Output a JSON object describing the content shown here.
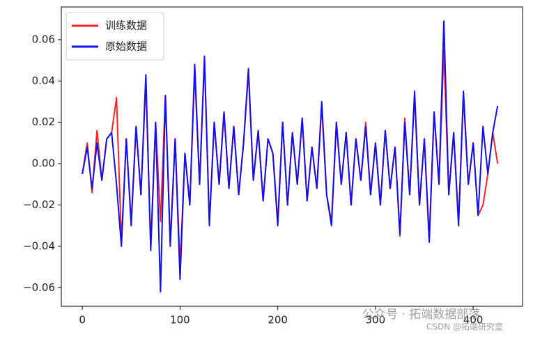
{
  "chart_data": {
    "type": "line",
    "x": [
      0,
      5,
      10,
      15,
      20,
      25,
      30,
      35,
      40,
      45,
      50,
      55,
      60,
      65,
      70,
      75,
      80,
      85,
      90,
      95,
      100,
      105,
      110,
      115,
      120,
      125,
      130,
      135,
      140,
      145,
      150,
      155,
      160,
      165,
      170,
      175,
      180,
      185,
      190,
      195,
      200,
      205,
      210,
      215,
      220,
      225,
      230,
      235,
      240,
      245,
      250,
      255,
      260,
      265,
      270,
      275,
      280,
      285,
      290,
      295,
      300,
      305,
      310,
      315,
      320,
      325,
      330,
      335,
      340,
      345,
      350,
      355,
      360,
      365,
      370,
      375,
      380,
      385,
      390,
      395,
      400,
      405,
      410,
      415,
      420,
      425
    ],
    "series": [
      {
        "name": "训练数据",
        "color": "#ff2020",
        "values": [
          -0.005,
          0.01,
          -0.014,
          0.016,
          -0.008,
          0.012,
          0.015,
          0.032,
          -0.038,
          0.012,
          -0.028,
          0.018,
          -0.015,
          0.04,
          -0.04,
          0.02,
          -0.028,
          0.033,
          -0.038,
          0.012,
          -0.05,
          0.005,
          -0.02,
          0.045,
          -0.01,
          0.05,
          -0.028,
          0.02,
          -0.01,
          0.025,
          -0.012,
          0.018,
          -0.015,
          0.01,
          0.044,
          -0.008,
          0.016,
          -0.018,
          0.012,
          0.005,
          -0.028,
          0.02,
          -0.02,
          0.015,
          -0.01,
          0.022,
          -0.018,
          0.008,
          -0.012,
          0.028,
          -0.015,
          -0.028,
          0.02,
          -0.01,
          0.015,
          -0.02,
          0.012,
          -0.008,
          0.02,
          -0.015,
          0.01,
          -0.02,
          0.016,
          -0.012,
          0.008,
          -0.035,
          0.022,
          -0.015,
          0.033,
          -0.02,
          0.012,
          -0.036,
          0.025,
          -0.01,
          0.055,
          -0.015,
          0.015,
          -0.028,
          0.033,
          -0.01,
          0.01,
          -0.025,
          -0.02,
          -0.005,
          0.015,
          0.0
        ]
      },
      {
        "name": "原始数据",
        "color": "#1010ee",
        "values": [
          -0.005,
          0.008,
          -0.012,
          0.01,
          -0.008,
          0.012,
          0.015,
          -0.01,
          -0.04,
          0.012,
          -0.03,
          0.018,
          -0.015,
          0.043,
          -0.042,
          0.02,
          -0.062,
          0.033,
          -0.04,
          0.012,
          -0.056,
          0.005,
          -0.02,
          0.048,
          -0.01,
          0.052,
          -0.03,
          0.02,
          -0.01,
          0.025,
          -0.012,
          0.018,
          -0.015,
          0.01,
          0.046,
          -0.008,
          0.016,
          -0.018,
          0.012,
          0.005,
          -0.03,
          0.02,
          -0.02,
          0.015,
          -0.01,
          0.022,
          -0.018,
          0.008,
          -0.012,
          0.03,
          -0.015,
          -0.03,
          0.02,
          -0.01,
          0.015,
          -0.02,
          0.012,
          -0.008,
          0.018,
          -0.015,
          0.01,
          -0.02,
          0.016,
          -0.012,
          0.008,
          -0.034,
          0.02,
          -0.015,
          0.035,
          -0.02,
          0.012,
          -0.038,
          0.025,
          -0.01,
          0.069,
          -0.015,
          0.015,
          -0.03,
          0.035,
          -0.01,
          0.01,
          -0.025,
          0.018,
          -0.005,
          0.015,
          0.028
        ]
      }
    ],
    "xlim": [
      -21.5,
      450.5
    ],
    "xticks": [
      0,
      100,
      200,
      300,
      400
    ],
    "ylim": [
      -0.069,
      0.0758
    ],
    "yticks": [
      {
        "value": -0.06,
        "label": "−0.06"
      },
      {
        "value": -0.04,
        "label": "−0.04"
      },
      {
        "value": -0.02,
        "label": "−0.02"
      },
      {
        "value": 0,
        "label": "0.00"
      },
      {
        "value": 0.02,
        "label": "0.02"
      },
      {
        "value": 0.04,
        "label": "0.04"
      },
      {
        "value": 0.06,
        "label": "0.06"
      }
    ],
    "legend": "upper left",
    "watermark": [
      "公众号 · 拓端数据部落",
      "CSDN @拓端研究室"
    ]
  }
}
